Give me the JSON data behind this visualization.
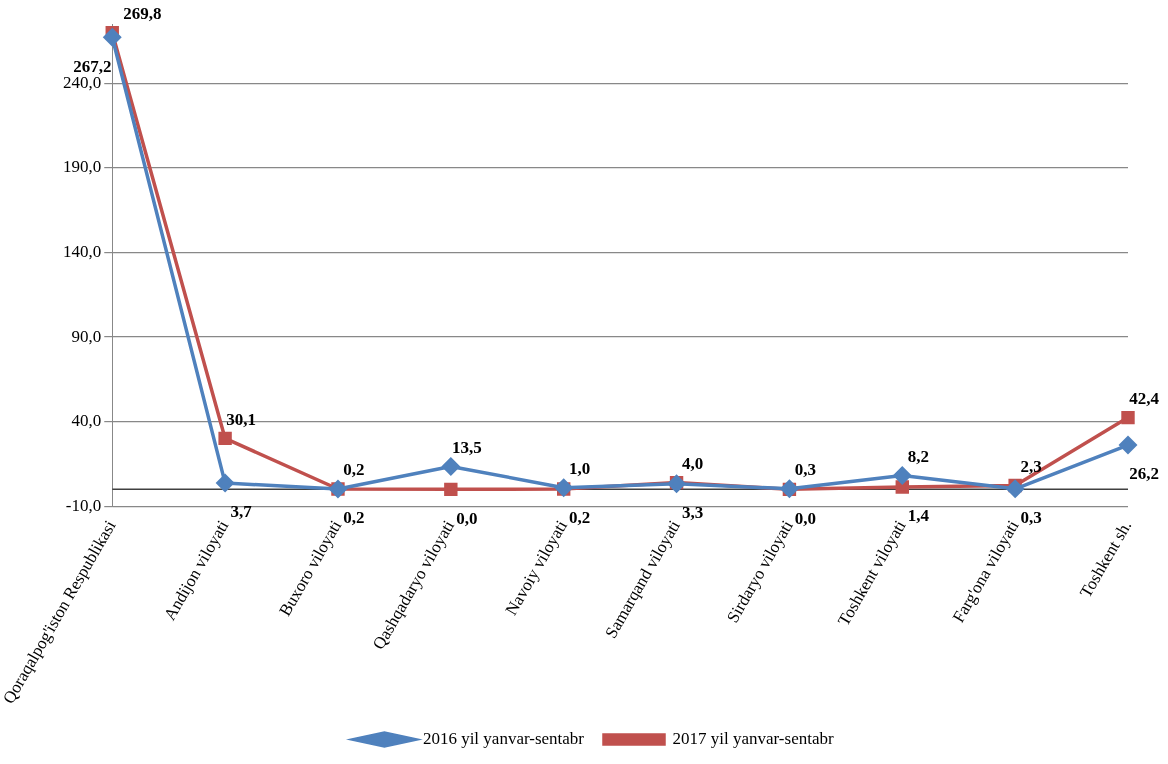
{
  "chart_data": {
    "type": "line",
    "categories": [
      "Qoraqalpog'iston Respublikasi",
      "Andijon viloyati",
      "Buxoro viloyati",
      "Qashqadaryo viloyati",
      "Navoiy viloyati",
      "Samarqand viloyati",
      "Sirdaryo viloyati",
      "Toshkent viloyati",
      "Farg'ona viloyati",
      "Toshkent sh."
    ],
    "series": [
      {
        "name": "2016 yil yanvar-sentabr",
        "color": "#4f81bd",
        "marker": "diamond",
        "values": [
          267.2,
          3.7,
          0.2,
          13.5,
          1.0,
          3.3,
          0.3,
          8.2,
          0.3,
          26.2
        ],
        "value_labels": [
          "267,2",
          "3,7",
          "0,2",
          "13,5",
          "1,0",
          "3,3",
          "0,3",
          "8,2",
          "0,3",
          "26,2"
        ]
      },
      {
        "name": "2017 yil yanvar-sentabr",
        "color": "#c0504d",
        "marker": "square",
        "values": [
          269.8,
          30.1,
          0.2,
          0.0,
          0.2,
          4.0,
          0.0,
          1.4,
          2.3,
          42.4
        ],
        "value_labels": [
          "269,8",
          "30,1",
          "0,2",
          "0,0",
          "0,2",
          "4,0",
          "0,0",
          "1,4",
          "2,3",
          "42,4"
        ]
      }
    ],
    "ylim": [
      -10,
      275
    ],
    "yticks": [
      {
        "value": -10,
        "label": "-10,0"
      },
      {
        "value": 40,
        "label": "40,0"
      },
      {
        "value": 90,
        "label": "90,0"
      },
      {
        "value": 140,
        "label": "140,0"
      },
      {
        "value": 190,
        "label": "190,0"
      },
      {
        "value": 240,
        "label": "240,0"
      }
    ],
    "ref_lines": [
      {
        "axis": "y",
        "value": 0,
        "color": "#404040"
      }
    ],
    "grid": "y",
    "legend": "bottom",
    "line_style": "solid"
  }
}
